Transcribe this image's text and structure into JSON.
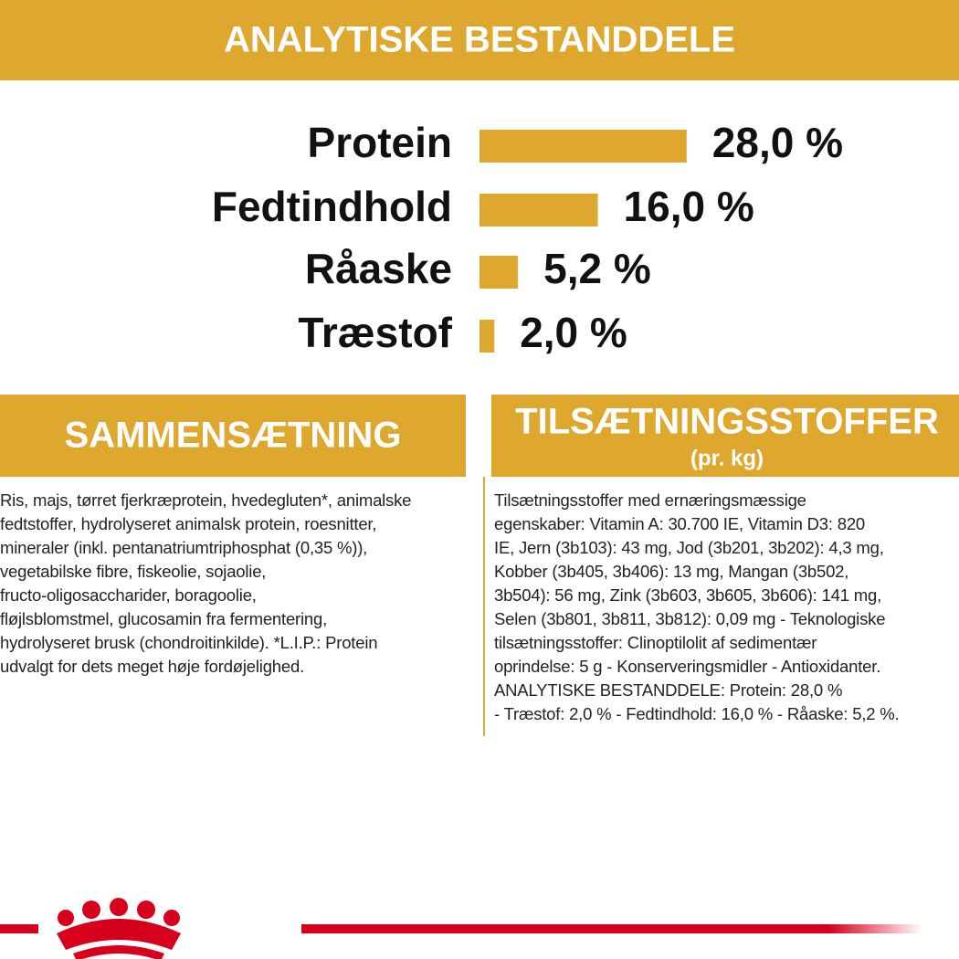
{
  "header": {
    "title": "ANALYTISKE BESTANDDELE"
  },
  "analysis": [
    {
      "name": "Protein",
      "value": 28.0,
      "value_label": "28,0 %"
    },
    {
      "name": "Fedtindhold",
      "value": 16.0,
      "value_label": "16,0 %"
    },
    {
      "name": "Råaske",
      "value": 5.2,
      "value_label": "5,2 %"
    },
    {
      "name": "Træstof",
      "value": 2.0,
      "value_label": "2,0 %"
    }
  ],
  "composition": {
    "title": "SAMMENSÆTNING",
    "lines": [
      "Ris, majs, tørret fjerkræprotein, hvedegluten*, animalske",
      "fedtstoffer, hydrolyseret animalsk protein, roesnitter,",
      "mineraler (inkl. pentanatriumtriphosphat (0,35 %)),",
      "vegetabilske fibre, fiskeolie, sojaolie,",
      "fructo-oligosaccharider, boragoolie,",
      "fløjlsblomstmel, glucosamin fra fermentering,",
      "hydrolyseret brusk (chondroitinkilde). *L.I.P.: Protein",
      "udvalgt for dets meget høje fordøjelighed."
    ]
  },
  "additives": {
    "title": "TILSÆTNINGSSTOFFER",
    "subtitle": "(pr. kg)",
    "lines": [
      "Tilsætningsstoffer med ernæringsmæssige",
      "egenskaber: Vitamin A: 30.700 IE, Vitamin D3: 820",
      "IE, Jern (3b103): 43 mg, Jod (3b201, 3b202): 4,3 mg,",
      "Kobber (3b405, 3b406): 13 mg, Mangan (3b502,",
      "3b504): 56 mg, Zink (3b603, 3b605, 3b606): 141 mg,",
      "Selen (3b801, 3b811, 3b812): 0,09 mg - Teknologiske",
      "tilsætningsstoffer: Clinoptilolit af sedimentær",
      "oprindelse: 5 g - Konserveringsmidler - Antioxidanter.",
      "ANALYTISKE BESTANDDELE: Protein: 28,0 %",
      "- Træstof: 2,0 % - Fedtindhold: 16,0 % - Råaske: 5,2 %."
    ]
  }
}
